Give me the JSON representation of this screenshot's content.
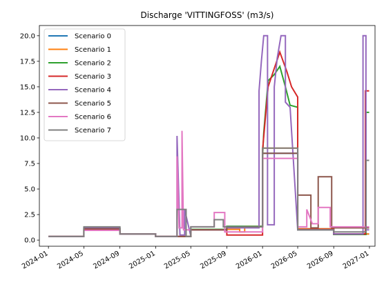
{
  "chart_data": {
    "type": "line",
    "title": "Discharge 'VITTINGFOSS' (m3/s)",
    "xlabel": "",
    "ylabel": "",
    "xlim": [
      "2023-12-01",
      "2027-01-20"
    ],
    "ylim": [
      -0.6,
      21.0
    ],
    "yticks": [
      0.0,
      2.5,
      5.0,
      7.5,
      10.0,
      12.5,
      15.0,
      17.5,
      20.0
    ],
    "ytick_labels": [
      "0.0",
      "2.5",
      "5.0",
      "7.5",
      "10.0",
      "12.5",
      "15.0",
      "17.5",
      "20.0"
    ],
    "xticks": [
      "2024-01-01",
      "2024-05-01",
      "2024-09-01",
      "2025-01-01",
      "2025-05-01",
      "2025-09-01",
      "2026-01-01",
      "2026-05-01",
      "2026-09-01",
      "2027-01-01"
    ],
    "xtick_labels": [
      "2024-01",
      "2024-05",
      "2024-09",
      "2025-01",
      "2025-05",
      "2025-09",
      "2026-01",
      "2026-05",
      "2026-09",
      "2027-01"
    ],
    "grid": false,
    "legend_position": "upper-left",
    "series": [
      {
        "name": "Scenario 0",
        "color": "#1f77b4",
        "points": [
          [
            "2024-01-01",
            0.35
          ],
          [
            "2024-05-01",
            0.35
          ],
          [
            "2024-05-01",
            1.15
          ],
          [
            "2024-09-01",
            1.15
          ],
          [
            "2024-09-01",
            0.6
          ],
          [
            "2025-01-01",
            0.6
          ],
          [
            "2025-01-01",
            0.35
          ],
          [
            "2025-04-01",
            0.35
          ],
          [
            "2025-05-01",
            0.35
          ],
          [
            "2025-05-01",
            1.05
          ],
          [
            "2025-09-01",
            1.05
          ],
          [
            "2025-09-01",
            1.35
          ],
          [
            "2026-01-01",
            1.35
          ],
          [
            "2026-01-01",
            8.5
          ],
          [
            "2026-05-01",
            8.5
          ],
          [
            "2026-05-01",
            1.1
          ],
          [
            "2026-09-01",
            1.1
          ],
          [
            "2026-09-01",
            0.6
          ],
          [
            "2026-12-31",
            0.6
          ]
        ]
      },
      {
        "name": "Scenario 1",
        "color": "#ff7f0e",
        "points": [
          [
            "2024-01-01",
            0.35
          ],
          [
            "2024-05-01",
            0.35
          ],
          [
            "2024-05-01",
            1.15
          ],
          [
            "2024-09-01",
            1.15
          ],
          [
            "2024-09-01",
            0.6
          ],
          [
            "2025-01-01",
            0.6
          ],
          [
            "2025-01-01",
            0.35
          ],
          [
            "2025-05-01",
            0.35
          ],
          [
            "2025-05-01",
            1.05
          ],
          [
            "2025-09-01",
            1.05
          ],
          [
            "2025-09-01",
            1.05
          ],
          [
            "2025-10-15",
            1.05
          ],
          [
            "2025-10-15",
            0.8
          ],
          [
            "2025-11-01",
            0.8
          ],
          [
            "2025-11-01",
            1.35
          ],
          [
            "2026-01-01",
            1.35
          ],
          [
            "2026-01-01",
            9.0
          ],
          [
            "2026-05-01",
            9.0
          ],
          [
            "2026-05-01",
            1.1
          ],
          [
            "2026-09-01",
            1.1
          ],
          [
            "2026-09-01",
            0.6
          ],
          [
            "2026-12-31",
            0.6
          ]
        ]
      },
      {
        "name": "Scenario 2",
        "color": "#2ca02c",
        "points": [
          [
            "2024-01-01",
            0.35
          ],
          [
            "2024-05-01",
            0.35
          ],
          [
            "2024-05-01",
            1.15
          ],
          [
            "2024-09-01",
            1.15
          ],
          [
            "2024-09-01",
            0.6
          ],
          [
            "2025-01-01",
            0.6
          ],
          [
            "2025-01-01",
            0.35
          ],
          [
            "2025-05-01",
            0.35
          ],
          [
            "2025-05-01",
            1.05
          ],
          [
            "2025-09-01",
            1.05
          ],
          [
            "2025-09-01",
            1.35
          ],
          [
            "2026-01-01",
            1.35
          ],
          [
            "2026-01-01",
            8.2
          ],
          [
            "2026-01-05",
            10.5
          ],
          [
            "2026-01-20",
            15.6
          ],
          [
            "2026-02-10",
            16.2
          ],
          [
            "2026-03-01",
            17.0
          ],
          [
            "2026-03-20",
            15.0
          ],
          [
            "2026-04-05",
            13.2
          ],
          [
            "2026-05-01",
            13.0
          ],
          [
            "2026-05-01",
            1.0
          ],
          [
            "2026-09-01",
            1.0
          ],
          [
            "2026-09-01",
            0.55
          ],
          [
            "2026-12-20",
            0.55
          ],
          [
            "2026-12-20",
            12.5
          ],
          [
            "2026-12-31",
            12.5
          ]
        ]
      },
      {
        "name": "Scenario 3",
        "color": "#d62728",
        "points": [
          [
            "2024-01-01",
            0.35
          ],
          [
            "2024-05-01",
            0.35
          ],
          [
            "2024-05-01",
            1.0
          ],
          [
            "2024-09-01",
            1.0
          ],
          [
            "2024-09-01",
            0.6
          ],
          [
            "2025-01-01",
            0.6
          ],
          [
            "2025-01-01",
            0.35
          ],
          [
            "2025-05-01",
            0.35
          ],
          [
            "2025-05-01",
            1.0
          ],
          [
            "2025-09-01",
            1.0
          ],
          [
            "2025-09-01",
            0.5
          ],
          [
            "2026-01-01",
            0.5
          ],
          [
            "2026-01-01",
            8.8
          ],
          [
            "2026-01-20",
            15.0
          ],
          [
            "2026-02-10",
            16.8
          ],
          [
            "2026-03-01",
            18.4
          ],
          [
            "2026-03-25",
            16.5
          ],
          [
            "2026-04-10",
            15.0
          ],
          [
            "2026-05-01",
            14.0
          ],
          [
            "2026-05-01",
            1.05
          ],
          [
            "2026-09-01",
            1.05
          ],
          [
            "2026-09-01",
            0.6
          ],
          [
            "2026-12-18",
            0.6
          ],
          [
            "2026-12-18",
            14.6
          ],
          [
            "2026-12-31",
            14.6
          ]
        ]
      },
      {
        "name": "Scenario 4",
        "color": "#9467bd",
        "points": [
          [
            "2024-01-01",
            0.35
          ],
          [
            "2024-05-01",
            0.35
          ],
          [
            "2024-05-01",
            1.2
          ],
          [
            "2024-09-01",
            1.2
          ],
          [
            "2024-09-01",
            0.6
          ],
          [
            "2025-01-01",
            0.6
          ],
          [
            "2025-01-01",
            0.35
          ],
          [
            "2025-03-15",
            0.35
          ],
          [
            "2025-03-15",
            10.2
          ],
          [
            "2025-03-25",
            0.5
          ],
          [
            "2025-04-10",
            0.5
          ],
          [
            "2025-04-10",
            3.0
          ],
          [
            "2025-05-01",
            0.4
          ],
          [
            "2025-05-01",
            1.0
          ],
          [
            "2025-09-01",
            1.0
          ],
          [
            "2025-09-01",
            1.2
          ],
          [
            "2025-12-20",
            1.2
          ],
          [
            "2025-12-20",
            14.6
          ],
          [
            "2025-12-28",
            17.5
          ],
          [
            "2026-01-05",
            20.0
          ],
          [
            "2026-01-18",
            20.0
          ],
          [
            "2026-01-18",
            1.5
          ],
          [
            "2026-02-10",
            1.5
          ],
          [
            "2026-02-10",
            15.0
          ],
          [
            "2026-02-20",
            17.8
          ],
          [
            "2026-03-05",
            20.0
          ],
          [
            "2026-03-20",
            20.0
          ],
          [
            "2026-03-20",
            13.5
          ],
          [
            "2026-04-05",
            13.0
          ],
          [
            "2026-05-01",
            1.0
          ],
          [
            "2026-09-01",
            1.0
          ],
          [
            "2026-09-01",
            0.6
          ],
          [
            "2026-12-10",
            0.6
          ],
          [
            "2026-12-10",
            20.0
          ],
          [
            "2026-12-20",
            20.0
          ],
          [
            "2026-12-20",
            1.0
          ],
          [
            "2026-12-31",
            1.0
          ]
        ]
      },
      {
        "name": "Scenario 5",
        "color": "#8c564b",
        "points": [
          [
            "2024-01-01",
            0.35
          ],
          [
            "2024-05-01",
            0.35
          ],
          [
            "2024-05-01",
            1.1
          ],
          [
            "2024-09-01",
            1.1
          ],
          [
            "2024-09-01",
            0.6
          ],
          [
            "2025-01-01",
            0.6
          ],
          [
            "2025-01-01",
            0.35
          ],
          [
            "2025-05-01",
            0.35
          ],
          [
            "2025-05-01",
            1.0
          ],
          [
            "2025-09-01",
            1.0
          ],
          [
            "2025-09-01",
            1.3
          ],
          [
            "2026-01-01",
            1.3
          ],
          [
            "2026-01-01",
            8.5
          ],
          [
            "2026-05-01",
            8.5
          ],
          [
            "2026-05-01",
            4.4
          ],
          [
            "2026-06-15",
            4.4
          ],
          [
            "2026-06-15",
            1.2
          ],
          [
            "2026-07-10",
            1.2
          ],
          [
            "2026-07-10",
            6.2
          ],
          [
            "2026-08-25",
            6.2
          ],
          [
            "2026-08-25",
            1.2
          ],
          [
            "2026-12-31",
            1.2
          ]
        ]
      },
      {
        "name": "Scenario 6",
        "color": "#e377c2",
        "points": [
          [
            "2024-01-01",
            0.35
          ],
          [
            "2024-05-01",
            0.35
          ],
          [
            "2024-05-01",
            0.95
          ],
          [
            "2024-09-01",
            0.95
          ],
          [
            "2024-09-01",
            0.6
          ],
          [
            "2025-01-01",
            0.6
          ],
          [
            "2025-01-01",
            0.35
          ],
          [
            "2025-03-15",
            0.35
          ],
          [
            "2025-03-15",
            8.2
          ],
          [
            "2025-03-22",
            1.2
          ],
          [
            "2025-04-01",
            1.2
          ],
          [
            "2025-04-01",
            10.7
          ],
          [
            "2025-04-06",
            1.0
          ],
          [
            "2025-05-01",
            1.0
          ],
          [
            "2025-05-01",
            1.3
          ],
          [
            "2025-07-20",
            1.3
          ],
          [
            "2025-07-20",
            2.7
          ],
          [
            "2025-08-25",
            2.7
          ],
          [
            "2025-08-25",
            0.8
          ],
          [
            "2026-01-01",
            0.8
          ],
          [
            "2026-01-01",
            8.0
          ],
          [
            "2026-05-01",
            8.0
          ],
          [
            "2026-05-01",
            1.3
          ],
          [
            "2026-06-01",
            1.3
          ],
          [
            "2026-06-01",
            3.0
          ],
          [
            "2026-06-20",
            1.6
          ],
          [
            "2026-07-10",
            1.6
          ],
          [
            "2026-07-10",
            3.2
          ],
          [
            "2026-08-20",
            3.2
          ],
          [
            "2026-08-20",
            1.3
          ],
          [
            "2026-12-31",
            1.3
          ]
        ]
      },
      {
        "name": "Scenario 7",
        "color": "#7f7f7f",
        "points": [
          [
            "2024-01-01",
            0.35
          ],
          [
            "2024-05-01",
            0.35
          ],
          [
            "2024-05-01",
            1.3
          ],
          [
            "2024-09-01",
            1.3
          ],
          [
            "2024-09-01",
            0.6
          ],
          [
            "2025-01-01",
            0.6
          ],
          [
            "2025-01-01",
            0.35
          ],
          [
            "2025-03-15",
            0.35
          ],
          [
            "2025-03-15",
            3.0
          ],
          [
            "2025-04-15",
            3.0
          ],
          [
            "2025-04-15",
            0.35
          ],
          [
            "2025-05-01",
            0.35
          ],
          [
            "2025-05-01",
            1.3
          ],
          [
            "2025-07-20",
            1.3
          ],
          [
            "2025-07-20",
            2.0
          ],
          [
            "2025-08-20",
            2.0
          ],
          [
            "2025-08-20",
            1.3
          ],
          [
            "2026-01-01",
            1.3
          ],
          [
            "2026-01-01",
            9.0
          ],
          [
            "2026-05-01",
            9.0
          ],
          [
            "2026-05-01",
            1.0
          ],
          [
            "2026-09-01",
            1.0
          ],
          [
            "2026-09-01",
            0.8
          ],
          [
            "2026-12-20",
            0.8
          ],
          [
            "2026-12-20",
            7.8
          ],
          [
            "2026-12-31",
            7.8
          ]
        ]
      }
    ]
  }
}
